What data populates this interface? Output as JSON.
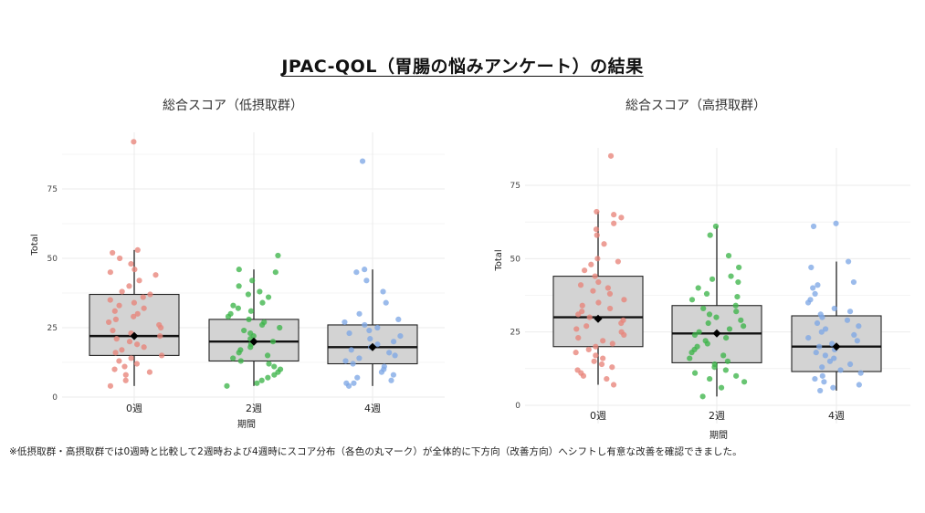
{
  "title": "JPAC-QOL（胃腸の悩みアンケート）の結果",
  "footnote": "※低摂取群・高摂取群では0週時と比較して2週時および4週時にスコア分布（各色の丸マーク）が全体的に下方向（改善方向）へシフトし有意な改善を確認できました。",
  "colors": {
    "week0": "#e8847a",
    "week2": "#3db54a",
    "week4": "#7fa8e6",
    "box_fill": "#d3d3d3"
  },
  "chart_data": [
    {
      "type": "box",
      "title": "総合スコア（低摂取群）",
      "xlabel": "期間",
      "ylabel": "Total",
      "categories": [
        "0週",
        "2週",
        "4週"
      ],
      "yticks": [
        0,
        25,
        50,
        75
      ],
      "ylim": [
        0,
        92
      ],
      "grid": true,
      "boxes": [
        {
          "q1": 15,
          "median": 22,
          "q3": 37,
          "whisker_low": 4,
          "whisker_high": 53,
          "mean": 22
        },
        {
          "q1": 13,
          "median": 20,
          "q3": 28,
          "whisker_low": 4,
          "whisker_high": 46,
          "mean": 20
        },
        {
          "q1": 12,
          "median": 18,
          "q3": 26,
          "whisker_low": 4,
          "whisker_high": 46,
          "mean": 18
        }
      ],
      "points": [
        [
          92,
          53,
          52,
          50,
          48,
          46,
          45,
          44,
          42,
          40,
          38,
          37,
          36,
          35,
          34,
          33,
          32,
          31,
          30,
          29,
          28,
          27,
          26,
          25,
          24,
          23,
          22,
          21,
          20,
          19,
          18,
          17,
          16,
          15,
          14,
          13,
          12,
          11,
          10,
          9,
          8,
          6,
          4
        ],
        [
          51,
          46,
          45,
          42,
          40,
          38,
          37,
          36,
          34,
          33,
          32,
          31,
          30,
          29,
          28,
          27,
          26,
          25,
          24,
          23,
          22,
          21,
          20,
          19,
          18,
          17,
          16,
          15,
          14,
          13,
          12,
          11,
          10,
          9,
          8,
          7,
          6,
          5,
          4
        ],
        [
          85,
          46,
          45,
          42,
          38,
          34,
          30,
          28,
          27,
          26,
          25,
          24,
          23,
          22,
          21,
          20,
          19,
          18,
          17,
          16,
          15,
          14,
          13,
          12,
          11,
          10,
          9,
          8,
          7,
          6,
          5,
          5,
          4
        ]
      ]
    },
    {
      "type": "box",
      "title": "総合スコア（高摂取群）",
      "xlabel": "期間",
      "ylabel": "Total",
      "categories": [
        "0週",
        "2週",
        "4週"
      ],
      "yticks": [
        0,
        25,
        50,
        75
      ],
      "ylim": [
        0,
        87
      ],
      "grid": true,
      "boxes": [
        {
          "q1": 20,
          "median": 30,
          "q3": 44,
          "whisker_low": 7,
          "whisker_high": 66,
          "mean": 29.5
        },
        {
          "q1": 14.5,
          "median": 24.5,
          "q3": 34,
          "whisker_low": 3,
          "whisker_high": 61,
          "mean": 24.5
        },
        {
          "q1": 11.5,
          "median": 20,
          "q3": 30.5,
          "whisker_low": 5,
          "whisker_high": 49,
          "mean": 20
        }
      ],
      "points": [
        [
          85,
          66,
          65,
          64,
          62,
          60,
          58,
          55,
          50,
          49,
          48,
          46,
          44,
          42,
          41,
          40,
          39,
          38,
          36,
          35,
          34,
          33,
          32,
          31,
          30,
          29,
          28,
          27,
          26,
          25,
          24,
          23,
          22,
          21,
          20,
          19,
          18,
          17,
          16,
          15,
          14,
          13,
          12,
          11,
          10,
          9,
          7
        ],
        [
          61,
          58,
          51,
          47,
          44,
          43,
          42,
          40,
          38,
          37,
          36,
          34,
          33,
          32,
          31,
          30,
          29,
          28,
          27,
          26,
          25,
          24,
          23,
          22,
          21,
          20,
          19,
          18,
          17,
          16,
          15,
          14,
          13,
          12,
          11,
          10,
          9,
          8,
          6,
          3
        ],
        [
          62,
          61,
          49,
          47,
          42,
          41,
          40,
          38,
          36,
          35,
          33,
          32,
          31,
          30,
          29,
          28,
          27,
          26,
          25,
          24,
          23,
          22,
          21,
          20,
          19,
          18,
          17,
          16,
          15,
          14,
          13,
          12,
          11,
          10,
          9,
          8,
          7,
          6,
          5
        ]
      ]
    }
  ]
}
